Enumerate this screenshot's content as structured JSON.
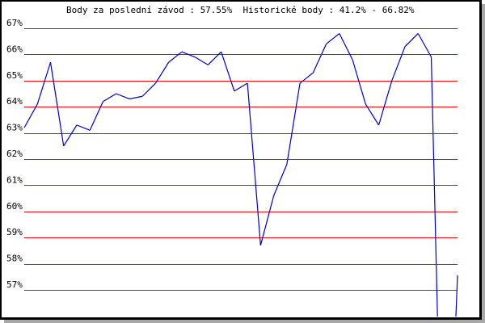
{
  "chart_data": {
    "type": "line",
    "title": "Body za poslední závod : 57.55%  Historické body : 41.2% - 66.82%",
    "xlabel": "",
    "ylabel": "",
    "ylim": [
      56,
      67.5
    ],
    "y_ticks": [
      "57%",
      "58%",
      "59%",
      "60%",
      "61%",
      "62%",
      "63%",
      "64%",
      "65%",
      "66%",
      "67%"
    ],
    "y_tick_values": [
      57,
      58,
      59,
      60,
      61,
      62,
      63,
      64,
      65,
      66,
      67
    ],
    "grid": true,
    "colors": {
      "grid": "#ff0000",
      "line": "#0000cc",
      "border": "#000000",
      "shadow": "#a8a8a8"
    },
    "series": [
      {
        "values": [
          63.2,
          64.1,
          65.7,
          62.5,
          63.3,
          63.1,
          64.2,
          64.5,
          64.3,
          64.4,
          64.9,
          65.7,
          66.1,
          65.9,
          65.6,
          66.1,
          64.6,
          64.9,
          58.7,
          60.6,
          61.8,
          64.9,
          65.3,
          66.4,
          66.8,
          65.8,
          64.1,
          63.3,
          65.0,
          66.3,
          66.8,
          65.9,
          45.0,
          57.55
        ]
      }
    ]
  }
}
